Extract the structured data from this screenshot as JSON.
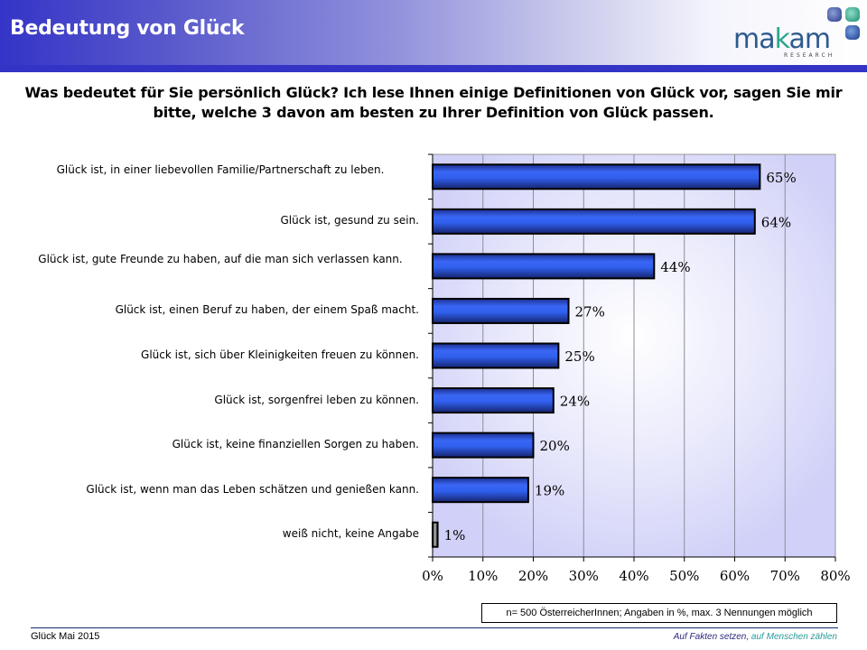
{
  "header": {
    "title": "Bedeutung von Glück",
    "logo": {
      "name_part1": "ma",
      "name_part2": "k",
      "name_part3": "am",
      "subtitle": "RESEARCH"
    }
  },
  "question": "Was bedeutet für Sie persönlich Glück? Ich lese Ihnen einige Definitionen von Glück vor, sagen Sie mir bitte, welche 3 davon am besten zu Ihrer Definition von Glück passen.",
  "note": "n= 500 ÖsterreicherInnen; Angaben in %, max. 3 Nennungen möglich",
  "footer": {
    "left": "Glück Mai 2015",
    "right_part1": "Auf Fakten setzen,",
    "right_part2": " auf Menschen zählen"
  },
  "colors": {
    "bar": "#2f5ef0",
    "bar_dark": "#1a2f8a",
    "bar_neutral": "#909090",
    "plot_bg": "#d0d0f8",
    "header_blue": "#3333c6"
  },
  "chart_data": {
    "type": "bar",
    "orientation": "horizontal",
    "title": "",
    "xlabel": "",
    "ylabel": "",
    "xlim": [
      0,
      80
    ],
    "x_ticks": [
      "0%",
      "10%",
      "20%",
      "30%",
      "40%",
      "50%",
      "60%",
      "70%",
      "80%"
    ],
    "grid": true,
    "legend": "none",
    "categories": [
      "Glück ist, in einer liebevollen Familie/Partnerschaft  zu leben.",
      "Glück ist, gesund zu sein.",
      "Glück ist, gute Freunde zu haben, auf die man sich verlassen kann.",
      "Glück ist, einen Beruf zu haben, der einem Spaß macht.",
      "Glück ist, sich über Kleinigkeiten  freuen zu können.",
      "Glück ist, sorgenfrei  leben zu können.",
      "Glück ist, keine finanziellen  Sorgen zu haben.",
      "Glück ist, wenn man das Leben schätzen  und genießen kann.",
      "weiß nicht, keine Angabe"
    ],
    "values": [
      65,
      64,
      44,
      27,
      25,
      24,
      20,
      19,
      1
    ],
    "value_labels": [
      "65%",
      "64%",
      "44%",
      "27%",
      "25%",
      "24%",
      "20%",
      "19%",
      "1%"
    ],
    "neutral_flags": [
      false,
      false,
      false,
      false,
      false,
      false,
      false,
      false,
      true
    ]
  }
}
